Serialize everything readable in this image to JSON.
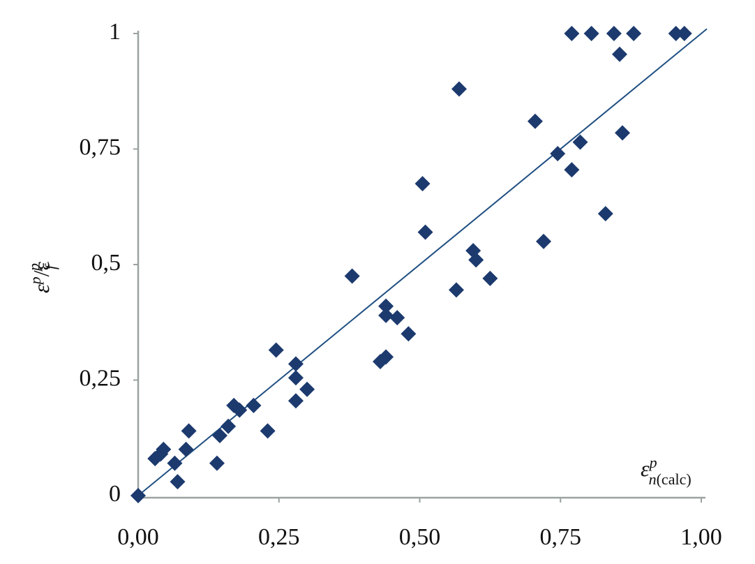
{
  "chart_data": {
    "type": "scatter",
    "xlabel": [
      "ε",
      "p",
      "n",
      "(calc)"
    ],
    "ylabel": [
      "ε",
      "p",
      "/ε",
      "f",
      "p"
    ],
    "xlim": [
      0,
      1
    ],
    "ylim": [
      0,
      1
    ],
    "xticks": [
      {
        "value": 0,
        "label": "0,00"
      },
      {
        "value": 0.25,
        "label": "0,25"
      },
      {
        "value": 0.5,
        "label": "0,50"
      },
      {
        "value": 0.75,
        "label": "0,75"
      },
      {
        "value": 1,
        "label": "1,00"
      }
    ],
    "yticks": [
      0,
      {
        "value": 0.25,
        "label": "0,25"
      },
      {
        "value": 0.5,
        "label": "0,5"
      },
      {
        "value": 0.75,
        "label": "0,75"
      },
      1
    ],
    "color": "#1c3a6e",
    "x": [
      0,
      0.03,
      0.04,
      0.045,
      0.065,
      0.07,
      0.085,
      0.09,
      0.14,
      0.145,
      0.16,
      0.17,
      0.18,
      0.205,
      0.23,
      0.245,
      0.28,
      0.28,
      0.28,
      0.3,
      0.38,
      0.43,
      0.44,
      0.44,
      0.44,
      0.46,
      0.48,
      0.505,
      0.51,
      0.565,
      0.57,
      0.595,
      0.6,
      0.625,
      0.705,
      0.72,
      0.745,
      0.77,
      0.77,
      0.785,
      0.805,
      0.83,
      0.845,
      0.855,
      0.86,
      0.88,
      0.955,
      0.97
    ],
    "values": [
      0,
      0.08,
      0.09,
      0.1,
      0.07,
      0.03,
      0.1,
      0.14,
      0.07,
      0.13,
      0.15,
      0.195,
      0.185,
      0.195,
      0.14,
      0.315,
      0.285,
      0.255,
      0.205,
      0.23,
      0.475,
      0.29,
      0.3,
      0.41,
      0.39,
      0.385,
      0.35,
      0.675,
      0.57,
      0.445,
      0.88,
      0.53,
      0.51,
      0.47,
      0.81,
      0.55,
      0.74,
      0.705,
      1,
      0.765,
      1,
      0.61,
      1,
      0.955,
      0.785,
      1,
      1,
      1
    ],
    "fit_line": {
      "x": [
        0,
        1.01
      ],
      "values": [
        0,
        1.01
      ],
      "color": "#1f4f82"
    }
  }
}
